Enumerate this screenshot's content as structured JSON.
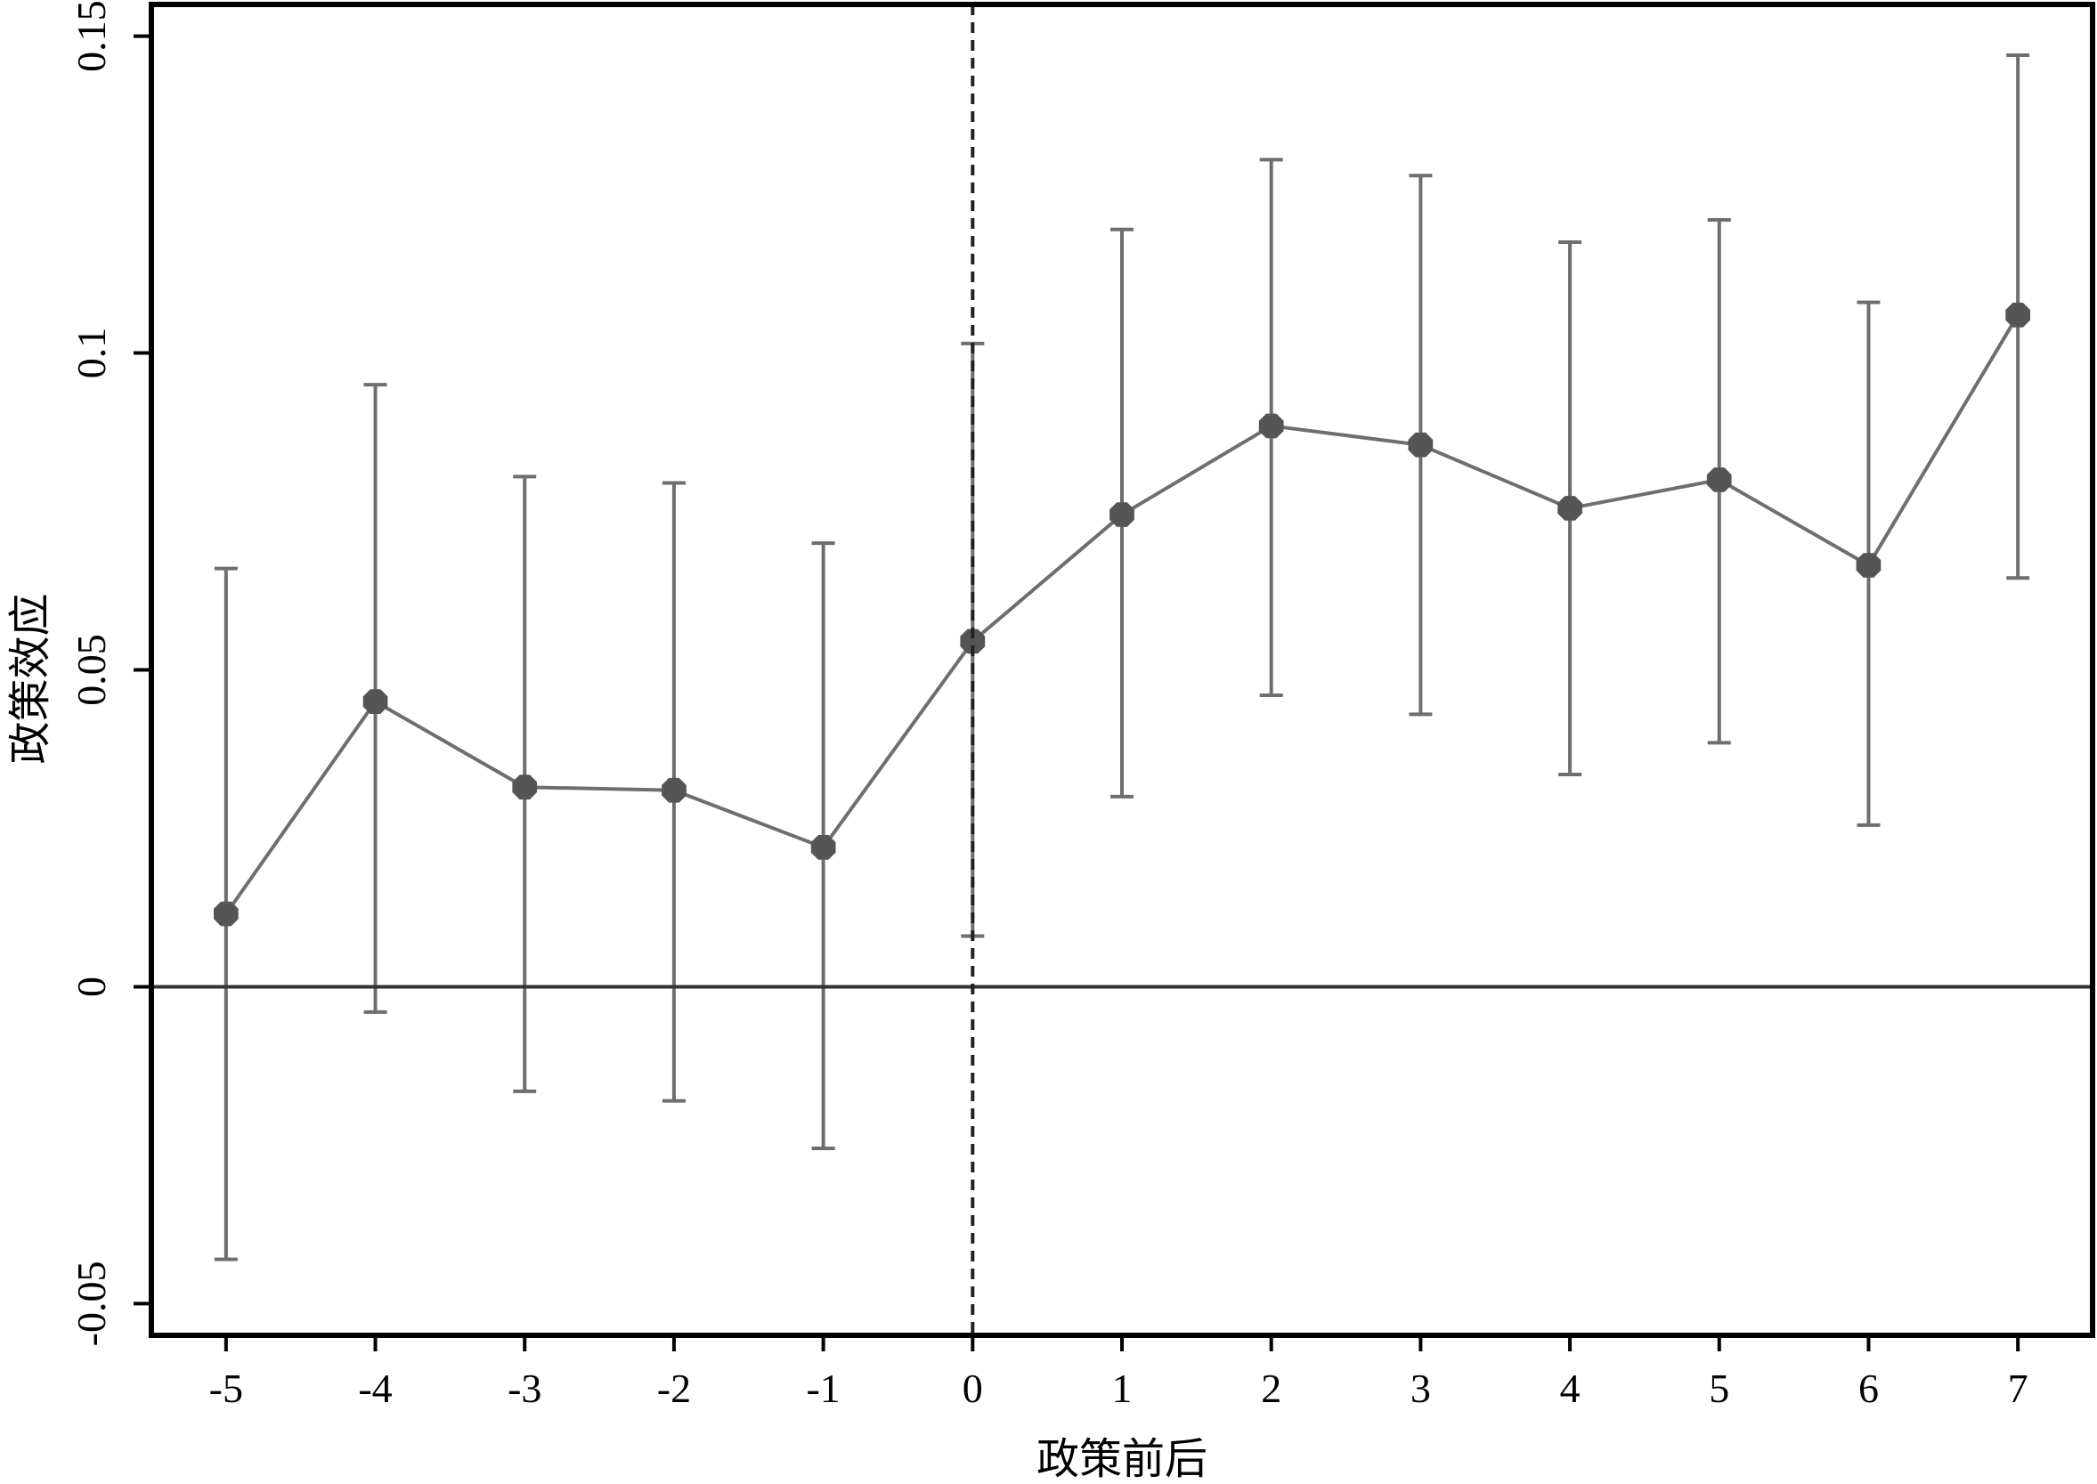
{
  "chart_data": {
    "type": "line",
    "title": "",
    "xlabel": "政策前后",
    "ylabel": "政策效应",
    "x": [
      -5,
      -4,
      -3,
      -2,
      -1,
      0,
      1,
      2,
      3,
      4,
      5,
      6,
      7
    ],
    "x_tick_labels": [
      "-5",
      "-4",
      "-3",
      "-2",
      "-1",
      "0",
      "1",
      "2",
      "3",
      "4",
      "5",
      "6",
      "7"
    ],
    "y_ticks": [
      -0.05,
      0,
      0.05,
      0.1,
      0.15
    ],
    "y_tick_labels": [
      "-0.05",
      "0",
      "0.05",
      "0.1",
      "0.15"
    ],
    "xlim": [
      -5.5,
      7.5
    ],
    "ylim": [
      -0.055,
      0.155
    ],
    "series": [
      {
        "values": [
          0.0115,
          0.045,
          0.0315,
          0.031,
          0.022,
          0.0545,
          0.0745,
          0.0885,
          0.0855,
          0.0755,
          0.08,
          0.0665,
          0.106
        ],
        "ci_low": [
          -0.043,
          -0.004,
          -0.0165,
          -0.018,
          -0.0255,
          0.008,
          0.03,
          0.046,
          0.043,
          0.0335,
          0.0385,
          0.0255,
          0.0645
        ],
        "ci_high": [
          0.066,
          0.095,
          0.0805,
          0.0795,
          0.07,
          0.1015,
          0.1195,
          0.1305,
          0.128,
          0.1175,
          0.121,
          0.108,
          0.147
        ]
      }
    ],
    "reference_lines": {
      "horizontal_y": 0,
      "vertical_x": 0
    },
    "grid": false,
    "colors": {
      "series": "#6e6e6e",
      "marker": "#555555",
      "frame": "#000000",
      "zero_line": "#333333"
    }
  }
}
